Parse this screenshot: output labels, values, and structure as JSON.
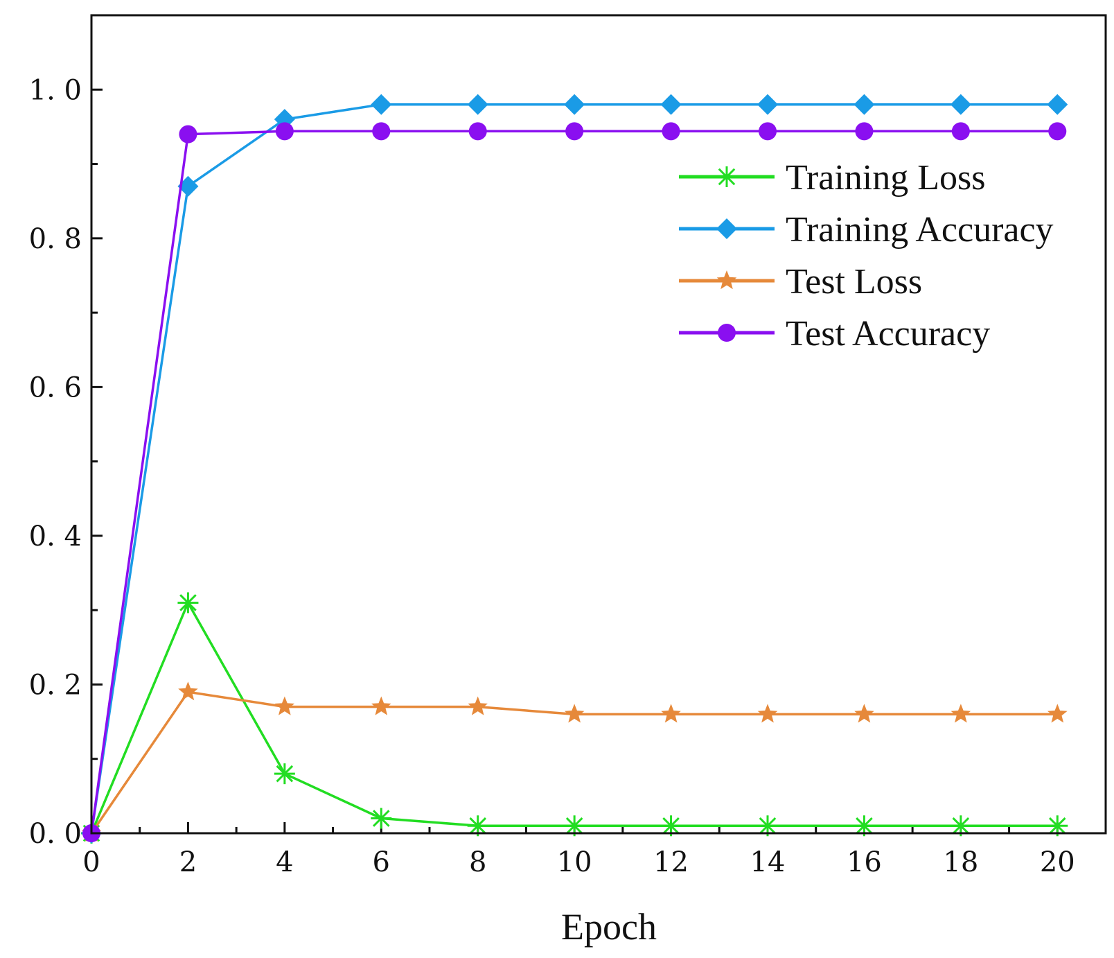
{
  "chart_data": {
    "type": "line",
    "title": "",
    "xlabel": "Epoch",
    "ylabel": "",
    "xlim": [
      0,
      21
    ],
    "ylim": [
      0,
      1.1
    ],
    "x_ticks": [
      0,
      2,
      4,
      6,
      8,
      10,
      12,
      14,
      16,
      18,
      20
    ],
    "x_tick_labels": [
      "0",
      "2",
      "4",
      "6",
      "8",
      "10",
      "12",
      "14",
      "16",
      "18",
      "20"
    ],
    "y_ticks": [
      0.0,
      0.2,
      0.4,
      0.6,
      0.8,
      1.0
    ],
    "y_tick_labels": [
      "0. 0",
      "0. 2",
      "0. 4",
      "0. 6",
      "0. 8",
      "1. 0"
    ],
    "grid": false,
    "legend_position": "upper-right",
    "series": [
      {
        "name": "Training Loss",
        "color": "#22dd22",
        "marker": "asterisk",
        "x": [
          0,
          2,
          4,
          6,
          8,
          10,
          12,
          14,
          16,
          18,
          20
        ],
        "values": [
          0.0,
          0.31,
          0.08,
          0.02,
          0.01,
          0.01,
          0.01,
          0.01,
          0.01,
          0.01,
          0.01
        ]
      },
      {
        "name": "Training Accuracy",
        "color": "#1a9be6",
        "marker": "diamond",
        "x": [
          0,
          2,
          4,
          6,
          8,
          10,
          12,
          14,
          16,
          18,
          20
        ],
        "values": [
          0.0,
          0.87,
          0.96,
          0.98,
          0.98,
          0.98,
          0.98,
          0.98,
          0.98,
          0.98,
          0.98
        ]
      },
      {
        "name": "Test Loss",
        "color": "#e6893a",
        "marker": "star",
        "x": [
          0,
          2,
          4,
          6,
          8,
          10,
          12,
          14,
          16,
          18,
          20
        ],
        "values": [
          0.0,
          0.19,
          0.17,
          0.17,
          0.17,
          0.16,
          0.16,
          0.16,
          0.16,
          0.16,
          0.16
        ]
      },
      {
        "name": "Test Accuracy",
        "color": "#8a0ff0",
        "marker": "circle",
        "x": [
          0,
          2,
          4,
          6,
          8,
          10,
          12,
          14,
          16,
          18,
          20
        ],
        "values": [
          0.0,
          0.94,
          0.944,
          0.944,
          0.944,
          0.944,
          0.944,
          0.944,
          0.944,
          0.944,
          0.944
        ]
      }
    ]
  }
}
